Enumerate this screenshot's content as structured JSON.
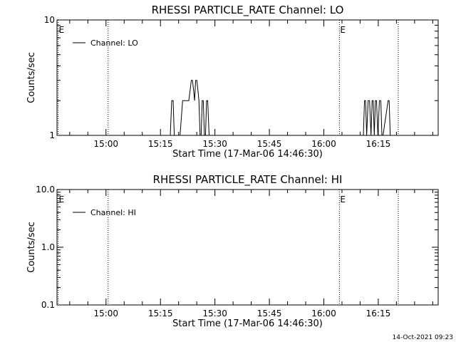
{
  "chart_data": [
    {
      "type": "line",
      "title": "RHESSI PARTICLE_RATE Channel: LO",
      "xlabel": "Start Time (17-Mar-06 14:46:30)",
      "ylabel": "Counts/sec",
      "y_scale": "log",
      "ylim": [
        1,
        10
      ],
      "y_ticks": [
        1,
        10
      ],
      "y_tick_labels": [
        "1",
        "10"
      ],
      "x_unit": "minutes_of_day",
      "xlim": [
        886.5,
        991.5
      ],
      "x_ticks": [
        900,
        915,
        930,
        945,
        960,
        975
      ],
      "x_tick_labels": [
        "15:00",
        "15:15",
        "15:30",
        "15:45",
        "16:00",
        "16:15"
      ],
      "legend": "top-left",
      "grid": false,
      "series": [
        {
          "name": "Channel: LO",
          "x": [
            886.5,
            917.7,
            918.1,
            918.5,
            918.8,
            919.2,
            919.6,
            920.4,
            921.1,
            921.8,
            922.4,
            922.8,
            923.2,
            923.5,
            923.8,
            924.1,
            924.4,
            924.7,
            925.0,
            925.3,
            925.6,
            925.9,
            926.2,
            926.5,
            926.8,
            927.1,
            927.4,
            927.7,
            928.0,
            928.4,
            928.7,
            929.0,
            970.9,
            971.2,
            971.5,
            971.8,
            972.2,
            972.6,
            973.0,
            973.3,
            973.6,
            973.9,
            974.2,
            974.5,
            974.9,
            975.3,
            975.7,
            976.0,
            976.3,
            977.7,
            978.0,
            978.3
          ],
          "y": [
            1,
            1,
            2,
            2,
            1,
            1,
            1,
            1,
            2,
            2,
            2,
            2,
            2.5,
            3,
            3,
            2.5,
            2,
            3,
            3,
            2.5,
            2,
            1,
            1,
            2,
            2,
            1,
            1,
            2,
            2,
            1,
            1,
            1,
            1,
            2,
            2,
            1,
            2,
            2,
            1,
            2,
            2,
            1,
            2,
            2,
            1,
            2,
            2,
            1,
            1,
            2,
            2,
            1
          ]
        }
      ],
      "markers": [
        {
          "x": 886.8,
          "label": "E",
          "label_printed": true
        },
        {
          "x": 900.6,
          "label": "",
          "label_printed": false
        },
        {
          "x": 964.3,
          "label": "E",
          "label_printed": true
        },
        {
          "x": 980.5,
          "label": "",
          "label_printed": false
        }
      ]
    },
    {
      "type": "line",
      "title": "RHESSI PARTICLE_RATE Channel: HI",
      "xlabel": "Start Time (17-Mar-06 14:46:30)",
      "ylabel": "Counts/sec",
      "y_scale": "log",
      "ylim": [
        0.1,
        10
      ],
      "y_ticks": [
        0.1,
        1,
        10
      ],
      "y_tick_labels": [
        "0.1",
        "1.0",
        "10.0"
      ],
      "x_unit": "minutes_of_day",
      "xlim": [
        886.5,
        991.5
      ],
      "x_ticks": [
        900,
        915,
        930,
        945,
        960,
        975
      ],
      "x_tick_labels": [
        "15:00",
        "15:15",
        "15:30",
        "15:45",
        "16:00",
        "16:15"
      ],
      "legend": "top-left",
      "grid": false,
      "series": [
        {
          "name": "Channel: HI",
          "x": [],
          "y": []
        }
      ],
      "markers": [
        {
          "x": 886.8,
          "label": "E",
          "label_printed": true
        },
        {
          "x": 900.6,
          "label": "",
          "label_printed": false
        },
        {
          "x": 964.3,
          "label": "E",
          "label_printed": true
        },
        {
          "x": 980.5,
          "label": "",
          "label_printed": false
        }
      ]
    }
  ],
  "footer": {
    "timestamp": "14-Oct-2021 09:23"
  },
  "colors": {
    "background": "#ffffff",
    "foreground": "#000000"
  }
}
